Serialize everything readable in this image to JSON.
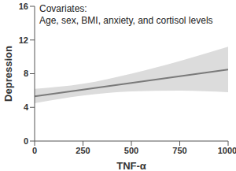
{
  "chart_data": {
    "type": "line",
    "x_label": "TNF-α",
    "y_label": "Depression",
    "annotations": [
      "Covariates:",
      "Age, sex, BMI, anxiety, and cortisol levels"
    ],
    "x": [
      0,
      250,
      500,
      750,
      1000
    ],
    "values": [
      5.3,
      6.1,
      6.9,
      7.7,
      8.5
    ],
    "band_lower": [
      4.5,
      5.4,
      5.9,
      6.0,
      5.8
    ],
    "band_upper": [
      6.2,
      6.8,
      8.0,
      9.5,
      11.2
    ],
    "color": "#7a7a7a",
    "xlim": [
      0,
      1000
    ],
    "xticks": [
      0,
      250,
      500,
      750,
      1000
    ],
    "ylim": [
      0,
      16
    ],
    "yticks": [
      0,
      4,
      8,
      12,
      16
    ],
    "grid": false
  }
}
